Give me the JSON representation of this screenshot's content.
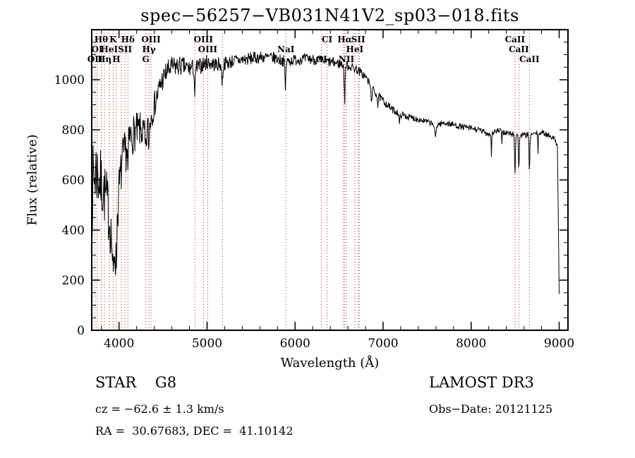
{
  "chart_data": {
    "type": "line",
    "title": "spec−56257−VB031N41V2_sp03−018.fits",
    "xlabel": "Wavelength (Å)",
    "ylabel": "Flux (relative)",
    "xlim": [
      3690,
      9100
    ],
    "ylim": [
      0,
      1200
    ],
    "x_ticks": [
      4000,
      5000,
      6000,
      7000,
      8000,
      9000
    ],
    "y_ticks": [
      0,
      200,
      400,
      600,
      800,
      1000
    ],
    "x_minor_step": 200,
    "y_minor_step": 50,
    "axis_color": "#000000",
    "spectrum_color": "#000000",
    "marker_color": "#b22222",
    "spectral_lines": [
      {
        "wavelength": 3727,
        "label": "OII",
        "row": 2
      },
      {
        "wavelength": 3750,
        "label": "OI",
        "row": 1
      },
      {
        "wavelength": 3798,
        "label": "Hθ",
        "row": 0
      },
      {
        "wavelength": 3835,
        "label": "Hη",
        "row": 2
      },
      {
        "wavelength": 3889,
        "label": "HeI",
        "row": 1
      },
      {
        "wavelength": 3933,
        "label": "K",
        "row": 0
      },
      {
        "wavelength": 3970,
        "label": "H",
        "row": 2
      },
      {
        "wavelength": 4026,
        "label": "",
        "row": 0
      },
      {
        "wavelength": 4068,
        "label": "SII",
        "row": 1
      },
      {
        "wavelength": 4101,
        "label": "Hδ",
        "row": 0
      },
      {
        "wavelength": 4304,
        "label": "G",
        "row": 2
      },
      {
        "wavelength": 4340,
        "label": "Hγ",
        "row": 1
      },
      {
        "wavelength": 4363,
        "label": "OIII",
        "row": 0
      },
      {
        "wavelength": 4861,
        "label": "",
        "row": 0
      },
      {
        "wavelength": 4959,
        "label": "OIII",
        "row": 0
      },
      {
        "wavelength": 5007,
        "label": "OIII",
        "row": 1
      },
      {
        "wavelength": 5175,
        "label": "",
        "row": 0
      },
      {
        "wavelength": 5896,
        "label": "NaI",
        "row": 1
      },
      {
        "wavelength": 6300,
        "label": "OI",
        "row": 2
      },
      {
        "wavelength": 6363,
        "label": "CI",
        "row": 0
      },
      {
        "wavelength": 6548,
        "label": "",
        "row": 0
      },
      {
        "wavelength": 6563,
        "label": "Hα",
        "row": 0
      },
      {
        "wavelength": 6583,
        "label": "NII",
        "row": 2
      },
      {
        "wavelength": 6678,
        "label": "HeI",
        "row": 1
      },
      {
        "wavelength": 6717,
        "label": "SII",
        "row": 0
      },
      {
        "wavelength": 6731,
        "label": "",
        "row": 0
      },
      {
        "wavelength": 8498,
        "label": "CaII",
        "row": 0
      },
      {
        "wavelength": 8542,
        "label": "CaII",
        "row": 1
      },
      {
        "wavelength": 8662,
        "label": "CaII",
        "row": 2
      }
    ],
    "spectrum": {
      "step": 5,
      "seed": 7,
      "continuum_anchors": [
        [
          3690,
          520
        ],
        [
          3710,
          600
        ],
        [
          3740,
          640
        ],
        [
          3780,
          600
        ],
        [
          3820,
          560
        ],
        [
          3860,
          520
        ],
        [
          3900,
          420
        ],
        [
          3933,
          300
        ],
        [
          3960,
          340
        ],
        [
          4000,
          560
        ],
        [
          4040,
          680
        ],
        [
          4080,
          720
        ],
        [
          4130,
          770
        ],
        [
          4180,
          790
        ],
        [
          4250,
          800
        ],
        [
          4300,
          780
        ],
        [
          4360,
          850
        ],
        [
          4420,
          920
        ],
        [
          4480,
          990
        ],
        [
          4540,
          1030
        ],
        [
          4600,
          1050
        ],
        [
          4700,
          1055
        ],
        [
          4800,
          1045
        ],
        [
          4900,
          1050
        ],
        [
          5000,
          1070
        ],
        [
          5100,
          1060
        ],
        [
          5200,
          1065
        ],
        [
          5300,
          1075
        ],
        [
          5450,
          1082
        ],
        [
          5600,
          1090
        ],
        [
          5750,
          1088
        ],
        [
          5900,
          1072
        ],
        [
          6000,
          1080
        ],
        [
          6150,
          1084
        ],
        [
          6300,
          1076
        ],
        [
          6450,
          1068
        ],
        [
          6600,
          1056
        ],
        [
          6700,
          1042
        ],
        [
          6800,
          1012
        ],
        [
          6900,
          952
        ],
        [
          7000,
          916
        ],
        [
          7100,
          882
        ],
        [
          7200,
          862
        ],
        [
          7300,
          850
        ],
        [
          7400,
          842
        ],
        [
          7500,
          832
        ],
        [
          7600,
          820
        ],
        [
          7700,
          828
        ],
        [
          7800,
          820
        ],
        [
          7900,
          812
        ],
        [
          8000,
          806
        ],
        [
          8100,
          798
        ],
        [
          8200,
          784
        ],
        [
          8300,
          796
        ],
        [
          8400,
          788
        ],
        [
          8500,
          780
        ],
        [
          8600,
          778
        ],
        [
          8700,
          782
        ],
        [
          8800,
          790
        ],
        [
          8900,
          776
        ],
        [
          8950,
          762
        ],
        [
          8980,
          740
        ],
        [
          9000,
          150
        ]
      ],
      "absorption_dips": [
        [
          3933,
          120,
          8
        ],
        [
          3968,
          120,
          8
        ],
        [
          4101,
          110,
          7
        ],
        [
          4304,
          80,
          10
        ],
        [
          4340,
          100,
          7
        ],
        [
          4861,
          110,
          8
        ],
        [
          5172,
          70,
          10
        ],
        [
          5890,
          110,
          7
        ],
        [
          6563,
          150,
          7
        ],
        [
          6867,
          45,
          10
        ],
        [
          6940,
          50,
          5
        ],
        [
          7186,
          40,
          8
        ],
        [
          7594,
          50,
          12
        ],
        [
          8230,
          100,
          4
        ],
        [
          8350,
          45,
          4
        ],
        [
          8498,
          165,
          6
        ],
        [
          8542,
          150,
          6
        ],
        [
          8662,
          165,
          6
        ],
        [
          8760,
          90,
          4
        ]
      ],
      "noise_envelope": [
        [
          3690,
          170
        ],
        [
          3800,
          130
        ],
        [
          3900,
          115
        ],
        [
          4000,
          95
        ],
        [
          4200,
          75
        ],
        [
          4400,
          55
        ],
        [
          4600,
          42
        ],
        [
          5000,
          30
        ],
        [
          5500,
          25
        ],
        [
          6000,
          22
        ],
        [
          6500,
          20
        ],
        [
          7000,
          15
        ],
        [
          7500,
          12
        ],
        [
          8000,
          12
        ],
        [
          8600,
          12
        ],
        [
          9000,
          10
        ]
      ]
    }
  },
  "footer": {
    "class_label": "STAR    G8",
    "cz": "cz = −62.6 ± 1.3 km/s",
    "radec": "RA =  30.67683, DEC =  41.10142",
    "survey": "LAMOST DR3",
    "obs_date": "Obs−Date: 20121125"
  }
}
